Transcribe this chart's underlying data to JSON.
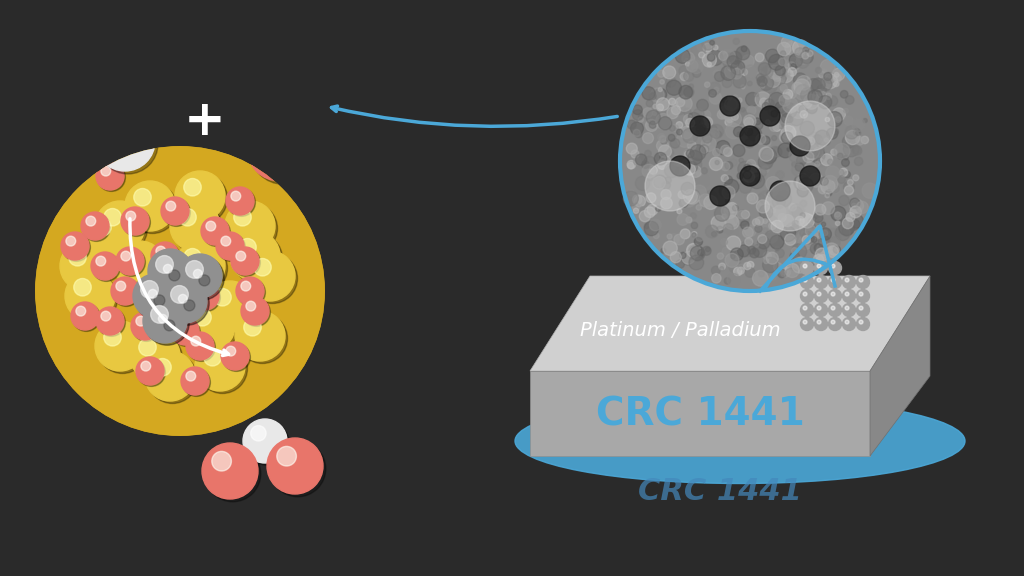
{
  "bg_color": "#2a2a2a",
  "salmon_color": "#E8756A",
  "white_sphere_color": "#E8E8E8",
  "yellow_sphere_color": "#E8C840",
  "silver_sphere_color": "#B0B0B0",
  "blue_arrow_color": "#4BA8D8",
  "block_color_top": "#C8C8C8",
  "block_color_front": "#A0A0A0",
  "block_color_side": "#888888",
  "crc_text_color": "#4BA8D8",
  "platinum_text_color": "#FFFFFF",
  "plus_color": "#FFFFFF",
  "block_text": "Platinum / Palladium",
  "crc_text": "CRC 1441",
  "title": ""
}
